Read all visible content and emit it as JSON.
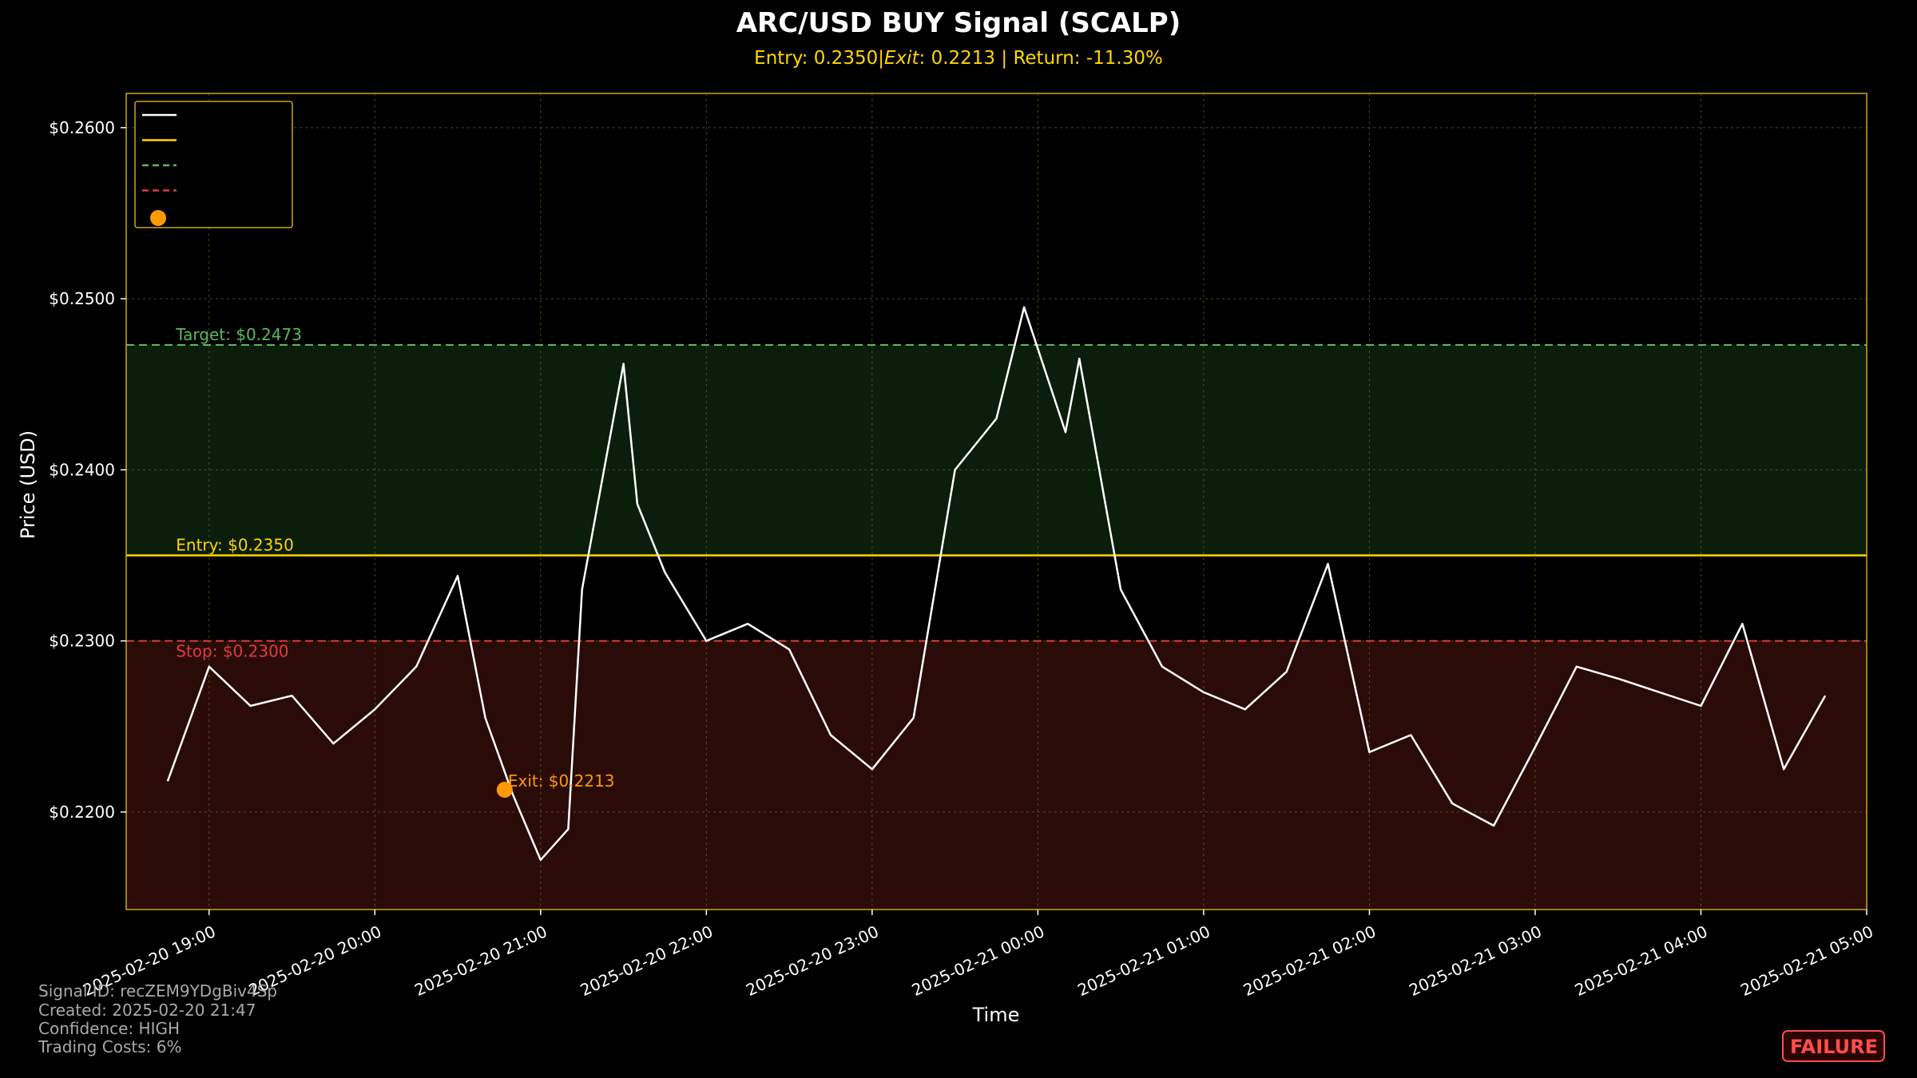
{
  "chart_data": {
    "type": "line",
    "title": "ARC/USD BUY Signal (SCALP)",
    "subtitle": "Entry: 0.2350|$Exit: 0.2213$ | Return: -11.30%",
    "subtitle_parts": {
      "entry": "Entry: 0.2350|",
      "exit_label": "Exit",
      "exit_value": ": 0.2213",
      "return": " | Return: -11.30%"
    },
    "xlabel": "Time",
    "ylabel": "Price (USD)",
    "ylim": [
      0.2143,
      0.262
    ],
    "xlim": [
      "2025-02-20 18:30",
      "2025-02-21 05:00"
    ],
    "y_ticks": [
      {
        "value": 0.22,
        "label": "$0.2200"
      },
      {
        "value": 0.23,
        "label": "$0.2300"
      },
      {
        "value": 0.24,
        "label": "$0.2400"
      },
      {
        "value": 0.25,
        "label": "$0.2500"
      },
      {
        "value": 0.26,
        "label": "$0.2600"
      }
    ],
    "x_ticks": [
      "2025-02-20 19:00",
      "2025-02-20 20:00",
      "2025-02-20 21:00",
      "2025-02-20 22:00",
      "2025-02-20 23:00",
      "2025-02-21 00:00",
      "2025-02-21 01:00",
      "2025-02-21 02:00",
      "2025-02-21 03:00",
      "2025-02-21 04:00",
      "2025-02-21 05:00"
    ],
    "grid": true,
    "legend": "top-left",
    "levels": {
      "target": {
        "value": 0.2473,
        "label": "Target: $0.2473",
        "color": "#5cb85c"
      },
      "entry": {
        "value": 0.235,
        "label": "Entry: $0.2350",
        "color": "#ffd700"
      },
      "stop": {
        "value": 0.23,
        "label": "Stop: $0.2300",
        "color": "#e03c3c"
      }
    },
    "exit_point": {
      "x": "2025-02-20 20:47",
      "y": 0.2213,
      "label": "Exit: $0.2213",
      "color": "#ff9900"
    },
    "price_color": "#ffffff",
    "x_times": [
      "2025-02-20 18:45",
      "2025-02-20 19:00",
      "2025-02-20 19:15",
      "2025-02-20 19:30",
      "2025-02-20 19:45",
      "2025-02-20 20:00",
      "2025-02-20 20:15",
      "2025-02-20 20:30",
      "2025-02-20 20:40",
      "2025-02-20 20:50",
      "2025-02-20 21:00",
      "2025-02-20 21:10",
      "2025-02-20 21:15",
      "2025-02-20 21:30",
      "2025-02-20 21:35",
      "2025-02-20 21:45",
      "2025-02-20 22:00",
      "2025-02-20 22:15",
      "2025-02-20 22:30",
      "2025-02-20 22:45",
      "2025-02-20 23:00",
      "2025-02-20 23:15",
      "2025-02-20 23:30",
      "2025-02-20 23:45",
      "2025-02-20 23:55",
      "2025-02-21 00:10",
      "2025-02-21 00:15",
      "2025-02-21 00:30",
      "2025-02-21 00:45",
      "2025-02-21 01:00",
      "2025-02-21 01:15",
      "2025-02-21 01:30",
      "2025-02-21 01:45",
      "2025-02-21 02:00",
      "2025-02-21 02:15",
      "2025-02-21 02:30",
      "2025-02-21 02:45",
      "2025-02-21 03:00",
      "2025-02-21 03:15",
      "2025-02-21 03:30",
      "2025-02-21 03:45",
      "2025-02-21 04:00",
      "2025-02-21 04:15",
      "2025-02-21 04:30",
      "2025-02-21 04:45"
    ],
    "prices": [
      0.2218,
      0.2285,
      0.2262,
      0.2268,
      0.224,
      0.226,
      0.2285,
      0.2338,
      0.2255,
      0.221,
      0.2172,
      0.219,
      0.233,
      0.2462,
      0.238,
      0.234,
      0.23,
      0.231,
      0.2295,
      0.2245,
      0.2225,
      0.2255,
      0.24,
      0.243,
      0.2495,
      0.2422,
      0.2465,
      0.233,
      0.2285,
      0.227,
      0.226,
      0.2282,
      0.2345,
      0.2235,
      0.2245,
      0.2205,
      0.2192,
      0.2238,
      0.2285,
      0.2278,
      0.227,
      0.2262,
      0.231,
      0.2225,
      0.2268
    ],
    "legend_entries": [
      {
        "style": "line",
        "color": "#ffffff"
      },
      {
        "style": "line",
        "color": "#ffd700"
      },
      {
        "style": "dashed",
        "color": "#5cb85c"
      },
      {
        "style": "dashed",
        "color": "#e03c3c"
      },
      {
        "style": "dot",
        "color": "#ff9900"
      }
    ]
  },
  "info": {
    "signal_id": "Signal ID: recZEM9YDgBiv4Sp",
    "created": "Created: 2025-02-20 21:47",
    "confidence": "Confidence: HIGH",
    "trading_costs": "Trading Costs: 6%"
  },
  "badge": {
    "label": "FAILURE",
    "color": "#ff4d4d"
  },
  "colors": {
    "frame": "#c8a820",
    "grid": "#6b6b1f",
    "target_zone": "#0b1d0b",
    "stop_zone": "#2a0b08"
  }
}
